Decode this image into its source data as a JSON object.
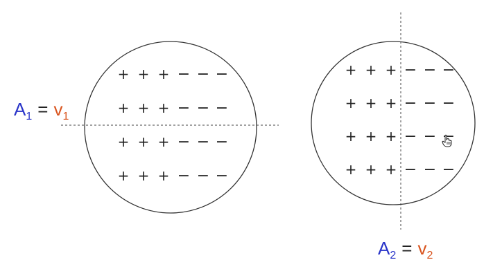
{
  "colors": {
    "stroke": "#333333",
    "dashed": "#444444",
    "area_symbol": "#2a35c9",
    "velocity_symbol": "#d9541e",
    "equals": "#222222",
    "signs": "#222222"
  },
  "circle_1": {
    "rows": [
      {
        "plus": [
          "+",
          "+",
          "+"
        ],
        "minus": [
          "−",
          "−",
          "−"
        ]
      },
      {
        "plus": [
          "+",
          "+",
          "+"
        ],
        "minus": [
          "−",
          "−",
          "−"
        ]
      },
      {
        "plus": [
          "+",
          "+",
          "+"
        ],
        "minus": [
          "−",
          "−",
          "−"
        ]
      },
      {
        "plus": [
          "+",
          "+",
          "+"
        ],
        "minus": [
          "−",
          "−",
          "−"
        ]
      }
    ],
    "equation": {
      "left_symbol": "A",
      "left_subscript": "1",
      "equals": "=",
      "right_symbol": "v",
      "right_subscript": "1"
    }
  },
  "circle_2": {
    "rows": [
      {
        "plus": [
          "+",
          "+",
          "+"
        ],
        "minus": [
          "−",
          "−",
          "−"
        ]
      },
      {
        "plus": [
          "+",
          "+",
          "+"
        ],
        "minus": [
          "−",
          "−",
          "−"
        ]
      },
      {
        "plus": [
          "+",
          "+",
          "+"
        ],
        "minus": [
          "−",
          "−",
          "−"
        ]
      },
      {
        "plus": [
          "+",
          "+",
          "+"
        ],
        "minus": [
          "−",
          "−",
          "−"
        ]
      }
    ],
    "equation": {
      "left_symbol": "A",
      "left_subscript": "2",
      "equals": "=",
      "right_symbol": "v",
      "right_subscript": "2"
    }
  },
  "cursor_icon": "hand-pointer-icon"
}
